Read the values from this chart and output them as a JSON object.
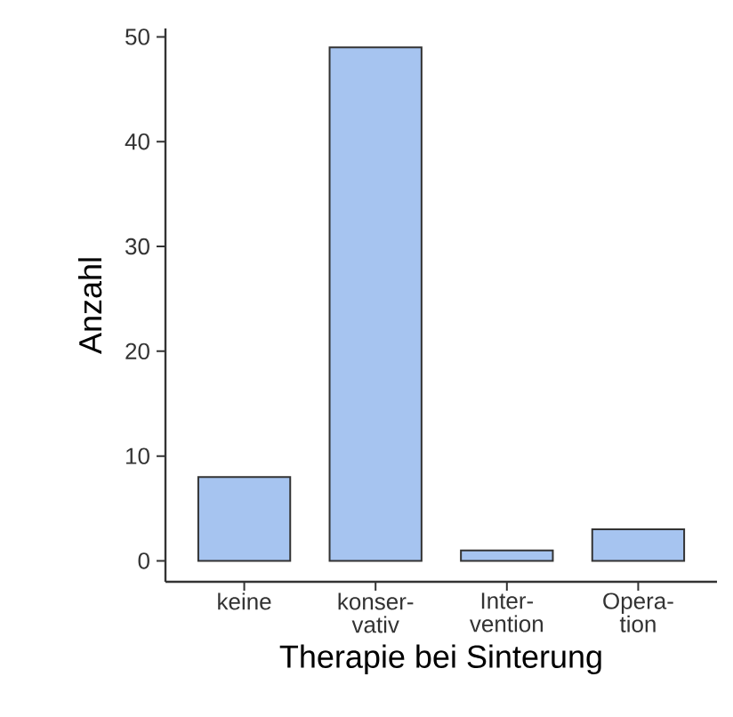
{
  "chart_data": {
    "type": "bar",
    "xlabel": "Therapie bei Sinterung",
    "ylabel": "Anzahl",
    "categories": [
      "keine",
      "konser- vativ",
      "Inter- vention",
      "Opera- tion"
    ],
    "values": [
      8,
      49,
      1,
      3
    ],
    "color": "#a6c4f0",
    "ylim": [
      -2,
      50.8
    ],
    "yticks": [
      0,
      10,
      20,
      30,
      40,
      50
    ]
  }
}
